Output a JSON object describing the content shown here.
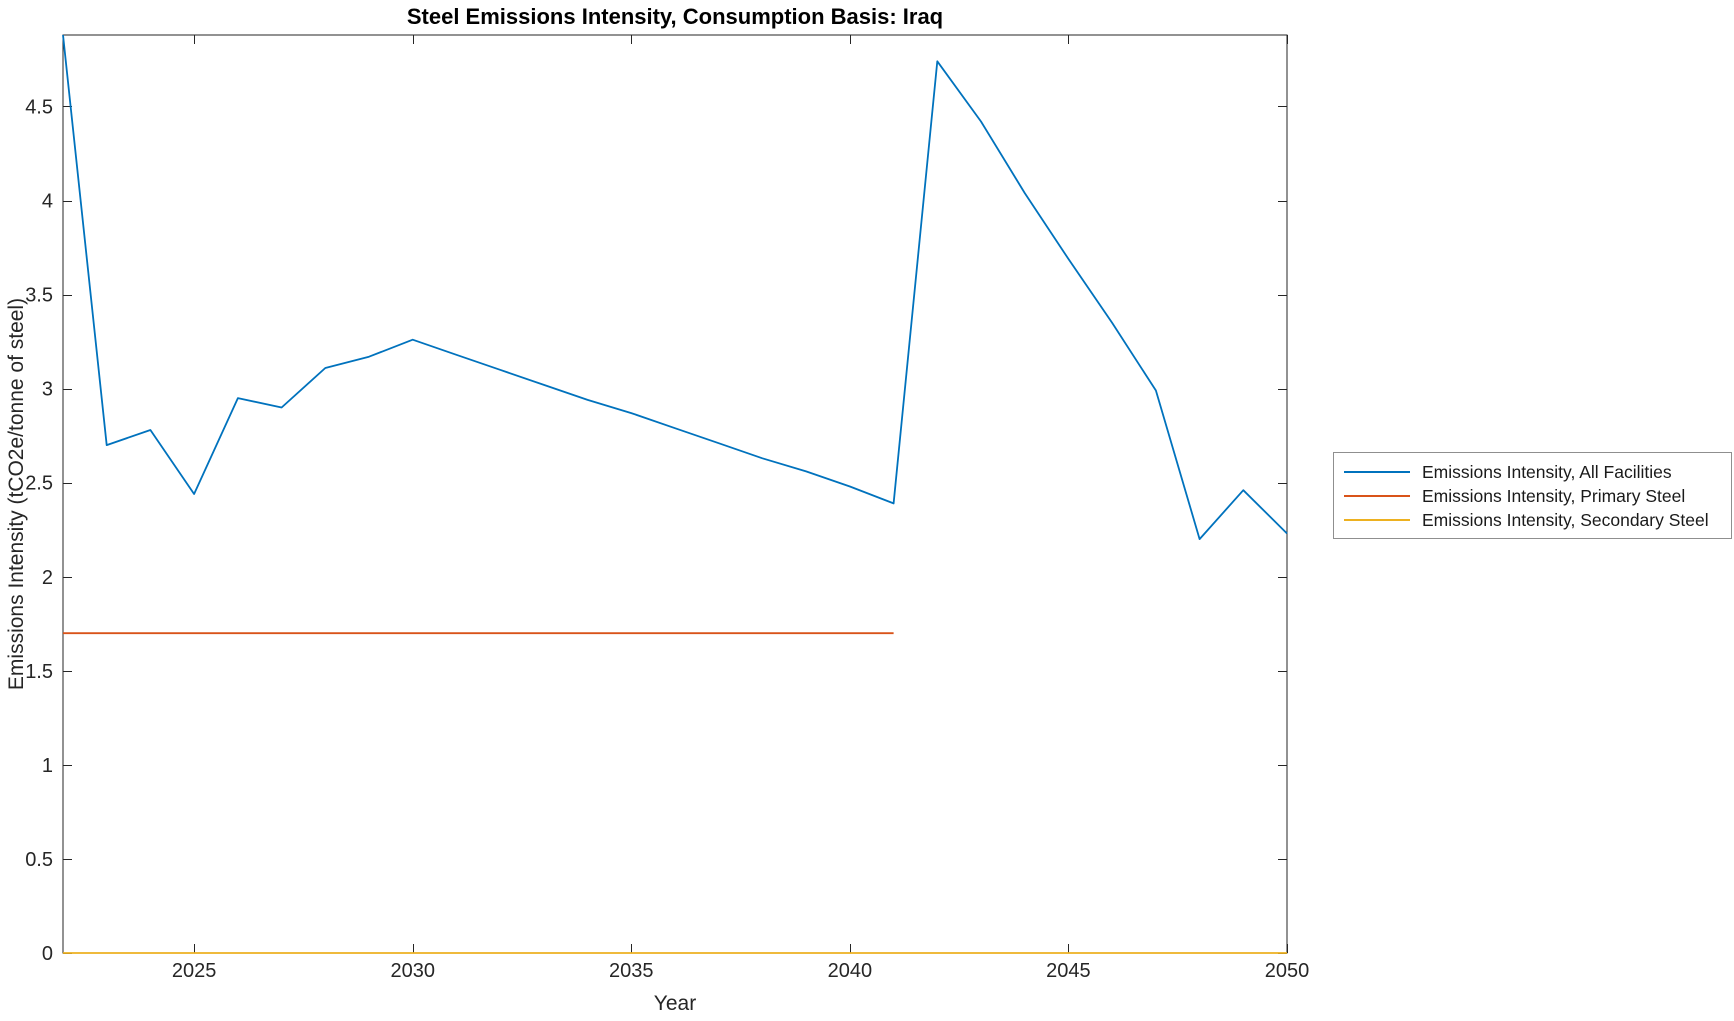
{
  "chart_data": {
    "type": "line",
    "title": "Steel Emissions Intensity, Consumption Basis: Iraq",
    "xlabel": "Year",
    "ylabel": "Emissions Intensity (tCO2e/tonne of steel)",
    "xlim": [
      2022,
      2050
    ],
    "ylim": [
      0,
      4.88
    ],
    "xticks": [
      2025,
      2030,
      2035,
      2040,
      2045,
      2050
    ],
    "yticks": [
      0,
      0.5,
      1,
      1.5,
      2,
      2.5,
      3,
      3.5,
      4,
      4.5
    ],
    "grid": false,
    "legend_position": "right-outside",
    "axis_color": "#262626",
    "series": [
      {
        "name": "Emissions Intensity, All Facilities",
        "color": "#0072BD",
        "x": [
          2022,
          2023,
          2024,
          2025,
          2026,
          2027,
          2028,
          2029,
          2030,
          2031,
          2032,
          2033,
          2034,
          2035,
          2036,
          2037,
          2038,
          2039,
          2040,
          2041,
          2042,
          2043,
          2044,
          2045,
          2046,
          2047,
          2048,
          2049,
          2050
        ],
        "y": [
          4.88,
          2.7,
          2.78,
          2.44,
          2.95,
          2.9,
          3.11,
          3.17,
          3.26,
          3.18,
          3.1,
          3.02,
          2.94,
          2.87,
          2.79,
          2.71,
          2.63,
          2.56,
          2.48,
          2.39,
          4.74,
          4.42,
          4.04,
          3.69,
          3.35,
          2.99,
          2.2,
          2.46,
          2.23
        ]
      },
      {
        "name": "Emissions Intensity, Primary Steel",
        "color": "#D95319",
        "x": [
          2022,
          2023,
          2024,
          2025,
          2026,
          2027,
          2028,
          2029,
          2030,
          2031,
          2032,
          2033,
          2034,
          2035,
          2036,
          2037,
          2038,
          2039,
          2040,
          2041
        ],
        "y": [
          1.7,
          1.7,
          1.7,
          1.7,
          1.7,
          1.7,
          1.7,
          1.7,
          1.7,
          1.7,
          1.7,
          1.7,
          1.7,
          1.7,
          1.7,
          1.7,
          1.7,
          1.7,
          1.7,
          1.7
        ]
      },
      {
        "name": "Emissions Intensity, Secondary Steel",
        "color": "#EDB120",
        "x": [
          2022,
          2023,
          2024,
          2025,
          2026,
          2027,
          2028,
          2029,
          2030,
          2031,
          2032,
          2033,
          2034,
          2035,
          2036,
          2037,
          2038,
          2039,
          2040,
          2041,
          2042,
          2043,
          2044,
          2045,
          2046,
          2047,
          2048,
          2049,
          2050
        ],
        "y": [
          0,
          0,
          0,
          0,
          0,
          0,
          0,
          0,
          0,
          0,
          0,
          0,
          0,
          0,
          0,
          0,
          0,
          0,
          0,
          0,
          0,
          0,
          0,
          0,
          0,
          0,
          0,
          0,
          0
        ]
      }
    ]
  }
}
